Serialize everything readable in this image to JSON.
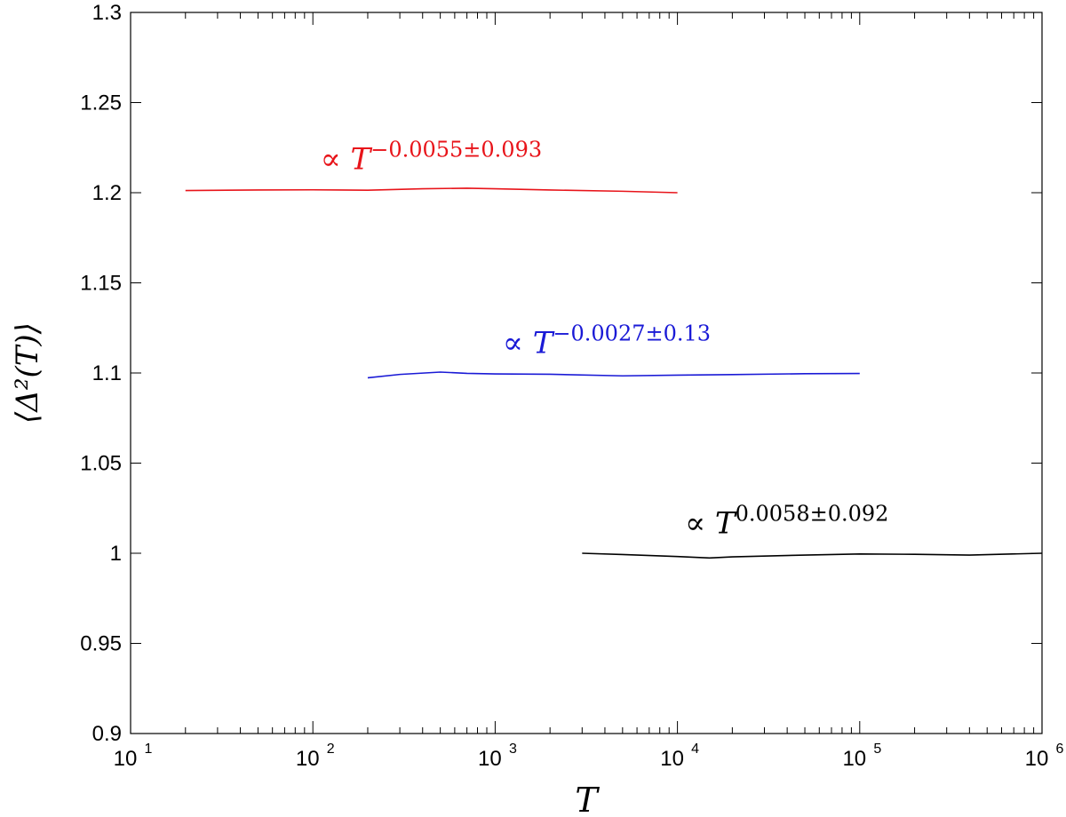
{
  "chart_data": {
    "type": "line",
    "xscale": "log",
    "xlim": [
      10,
      1000000
    ],
    "ylim": [
      0.9,
      1.3
    ],
    "xlabel": "T",
    "ylabel": "⟨Δ²(T)⟩",
    "x_ticks": [
      {
        "base": "10",
        "exp": "1"
      },
      {
        "base": "10",
        "exp": "2"
      },
      {
        "base": "10",
        "exp": "3"
      },
      {
        "base": "10",
        "exp": "4"
      },
      {
        "base": "10",
        "exp": "5"
      },
      {
        "base": "10",
        "exp": "6"
      }
    ],
    "y_ticks": [
      "0.9",
      "0.95",
      "1",
      "1.05",
      "1.1",
      "1.15",
      "1.2",
      "1.25",
      "1.3"
    ],
    "grid": false,
    "series": [
      {
        "color": "#e8141a",
        "x": [
          20,
          50,
          100,
          200,
          400,
          700,
          1000,
          2000,
          5000,
          10000
        ],
        "y": [
          1.2012,
          1.2015,
          1.2016,
          1.2014,
          1.2022,
          1.2025,
          1.2022,
          1.2015,
          1.2008,
          1.2
        ]
      },
      {
        "color": "#1a1ad6",
        "x": [
          200,
          300,
          500,
          700,
          1000,
          2000,
          5000,
          10000,
          20000,
          50000,
          100000
        ],
        "y": [
          1.0973,
          1.0992,
          1.1005,
          1.0998,
          1.0995,
          1.0993,
          1.0984,
          1.0988,
          1.0991,
          1.0996,
          1.0997
        ]
      },
      {
        "color": "#000000",
        "x": [
          3000,
          5000,
          10000,
          15000,
          20000,
          50000,
          100000,
          200000,
          400000,
          1000000
        ],
        "y": [
          1.0,
          0.9993,
          0.9982,
          0.9974,
          0.998,
          0.999,
          0.9996,
          0.9994,
          0.999,
          1.0
        ]
      }
    ],
    "annotations": [
      {
        "text": "∝ T",
        "exp": "−0.0055±0.093",
        "color": "#e8141a",
        "x": 110,
        "y": 1.213
      },
      {
        "text": "∝ T",
        "exp": "−0.0027±0.13",
        "color": "#1a1ad6",
        "x": 1100,
        "y": 1.111
      },
      {
        "text": "∝ T",
        "exp": "0.0058±0.092",
        "color": "#000000",
        "x": 11000,
        "y": 1.011
      }
    ]
  }
}
